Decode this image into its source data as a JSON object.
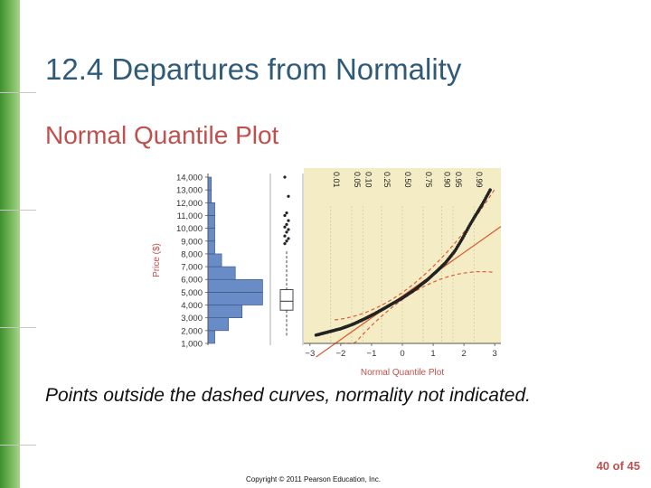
{
  "slide": {
    "title": "12.4 Departures from Normality",
    "subtitle": "Normal Quantile Plot",
    "caption": "Points outside the dashed curves, normality not indicated.",
    "page": "40 of 45",
    "copyright": "Copyright © 2011 Pearson Education, Inc."
  },
  "chart_data": {
    "type": "scatter",
    "ylabel": "Price ($)",
    "xlabel": "Normal Quantile Plot",
    "y_ticks": [
      "14,000",
      "13,000",
      "12,000",
      "11,000",
      "10,000",
      "9,000",
      "8,000",
      "7,000",
      "6,000",
      "5,000",
      "4,000",
      "3,000",
      "2,000",
      "1,000"
    ],
    "y_tick_values": [
      14000,
      13000,
      12000,
      11000,
      10000,
      9000,
      8000,
      7000,
      6000,
      5000,
      4000,
      3000,
      2000,
      1000
    ],
    "ylim": [
      1000,
      14000
    ],
    "x_ticks": [
      "−3",
      "−2",
      "−1",
      "0",
      "1",
      "2",
      "3"
    ],
    "x_tick_values": [
      -3,
      -2,
      -1,
      0,
      1,
      2,
      3
    ],
    "xlim": [
      -3.2,
      3.2
    ],
    "top_probabilities": [
      "0.01",
      "0.05",
      "0.10",
      "0.25",
      "0.50",
      "0.75",
      "0.90",
      "0.95",
      "0.99"
    ],
    "top_probability_z": [
      -2.326,
      -1.645,
      -1.282,
      -0.674,
      0,
      0.674,
      1.282,
      1.645,
      2.326
    ],
    "histogram": {
      "bins": [
        [
          1000,
          2000,
          1
        ],
        [
          2000,
          3000,
          3
        ],
        [
          3000,
          4000,
          5
        ],
        [
          4000,
          5000,
          8
        ],
        [
          5000,
          6000,
          8
        ],
        [
          6000,
          7000,
          4
        ],
        [
          7000,
          8000,
          2
        ],
        [
          8000,
          9000,
          1
        ],
        [
          9000,
          10000,
          1
        ],
        [
          10000,
          11000,
          1
        ],
        [
          11000,
          12000,
          1
        ],
        [
          12000,
          13000,
          0.5
        ],
        [
          13000,
          14000,
          0.5
        ]
      ],
      "count_max": 9
    },
    "boxplot": {
      "min": 1600,
      "q1": 3600,
      "median": 4300,
      "q3": 5200,
      "max": 8200
    },
    "boxplot_outliers": [
      8800,
      9000,
      9200,
      9400,
      9700,
      9900,
      10100,
      10300,
      10600,
      11000,
      11200,
      12500,
      14000
    ],
    "reference_line": {
      "intercept": 4700,
      "slope": 1700
    },
    "confidence_band": {
      "center": 4700,
      "slope": 1700,
      "half_width_base": 280,
      "half_width_growth": 330
    },
    "curve_points": [
      [
        -2.8,
        1650
      ],
      [
        -2.4,
        1900
      ],
      [
        -2.0,
        2150
      ],
      [
        -1.6,
        2500
      ],
      [
        -1.2,
        2950
      ],
      [
        -0.8,
        3450
      ],
      [
        -0.4,
        4000
      ],
      [
        0.0,
        4550
      ],
      [
        0.4,
        5200
      ],
      [
        0.8,
        5950
      ],
      [
        1.1,
        6600
      ],
      [
        1.4,
        7300
      ],
      [
        1.7,
        8200
      ],
      [
        1.95,
        9200
      ],
      [
        2.2,
        10300
      ],
      [
        2.45,
        11300
      ],
      [
        2.65,
        12100
      ],
      [
        2.85,
        13000
      ]
    ],
    "colors": {
      "plot_background": "#f3ecc4",
      "histogram": "#6a8cc6",
      "points": "#222222",
      "reference": "#d9603b"
    }
  }
}
